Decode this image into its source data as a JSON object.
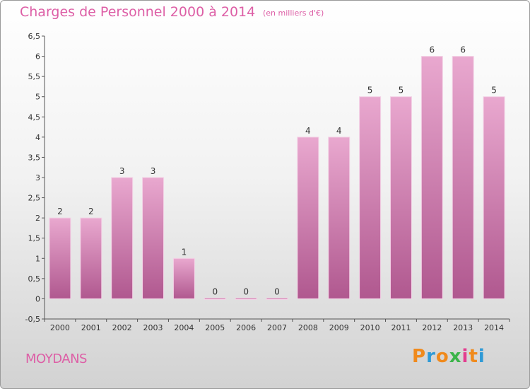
{
  "header": {
    "title": "Charges de Personnel 2000 à 2014",
    "subtitle": "(en milliers d'€)"
  },
  "footer": {
    "place": "MOYDANS",
    "logo_text": "Proxiti",
    "logo_colors": [
      "#f08a1c",
      "#2f9ad6",
      "#f08a1c",
      "#3cb44a",
      "#e33d8f",
      "#f08a1c",
      "#2f9ad6"
    ]
  },
  "colors": {
    "bar_top": "#e9a8cf",
    "bar_bottom": "#b0588f",
    "accent": "#dd5fa6"
  },
  "chart_data": {
    "type": "bar",
    "title": "Charges de Personnel 2000 à 2014",
    "subtitle": "(en milliers d'€)",
    "xlabel": "",
    "ylabel": "",
    "categories": [
      "2000",
      "2001",
      "2002",
      "2003",
      "2004",
      "2005",
      "2006",
      "2007",
      "2008",
      "2009",
      "2010",
      "2011",
      "2012",
      "2013",
      "2014"
    ],
    "values": [
      2,
      2,
      3,
      3,
      1,
      0,
      0,
      0,
      4,
      4,
      5,
      5,
      6,
      6,
      5
    ],
    "ylim": [
      -0.5,
      6.5
    ],
    "yticks": [
      "-0,5",
      "0",
      "0,5",
      "1",
      "1,5",
      "2",
      "2,5",
      "3",
      "3,5",
      "4",
      "4,5",
      "5",
      "5,5",
      "6",
      "6,5"
    ],
    "ytick_values": [
      -0.5,
      0,
      0.5,
      1,
      1.5,
      2,
      2.5,
      3,
      3.5,
      4,
      4.5,
      5,
      5.5,
      6,
      6.5
    ],
    "grid": false,
    "legend": "none"
  }
}
